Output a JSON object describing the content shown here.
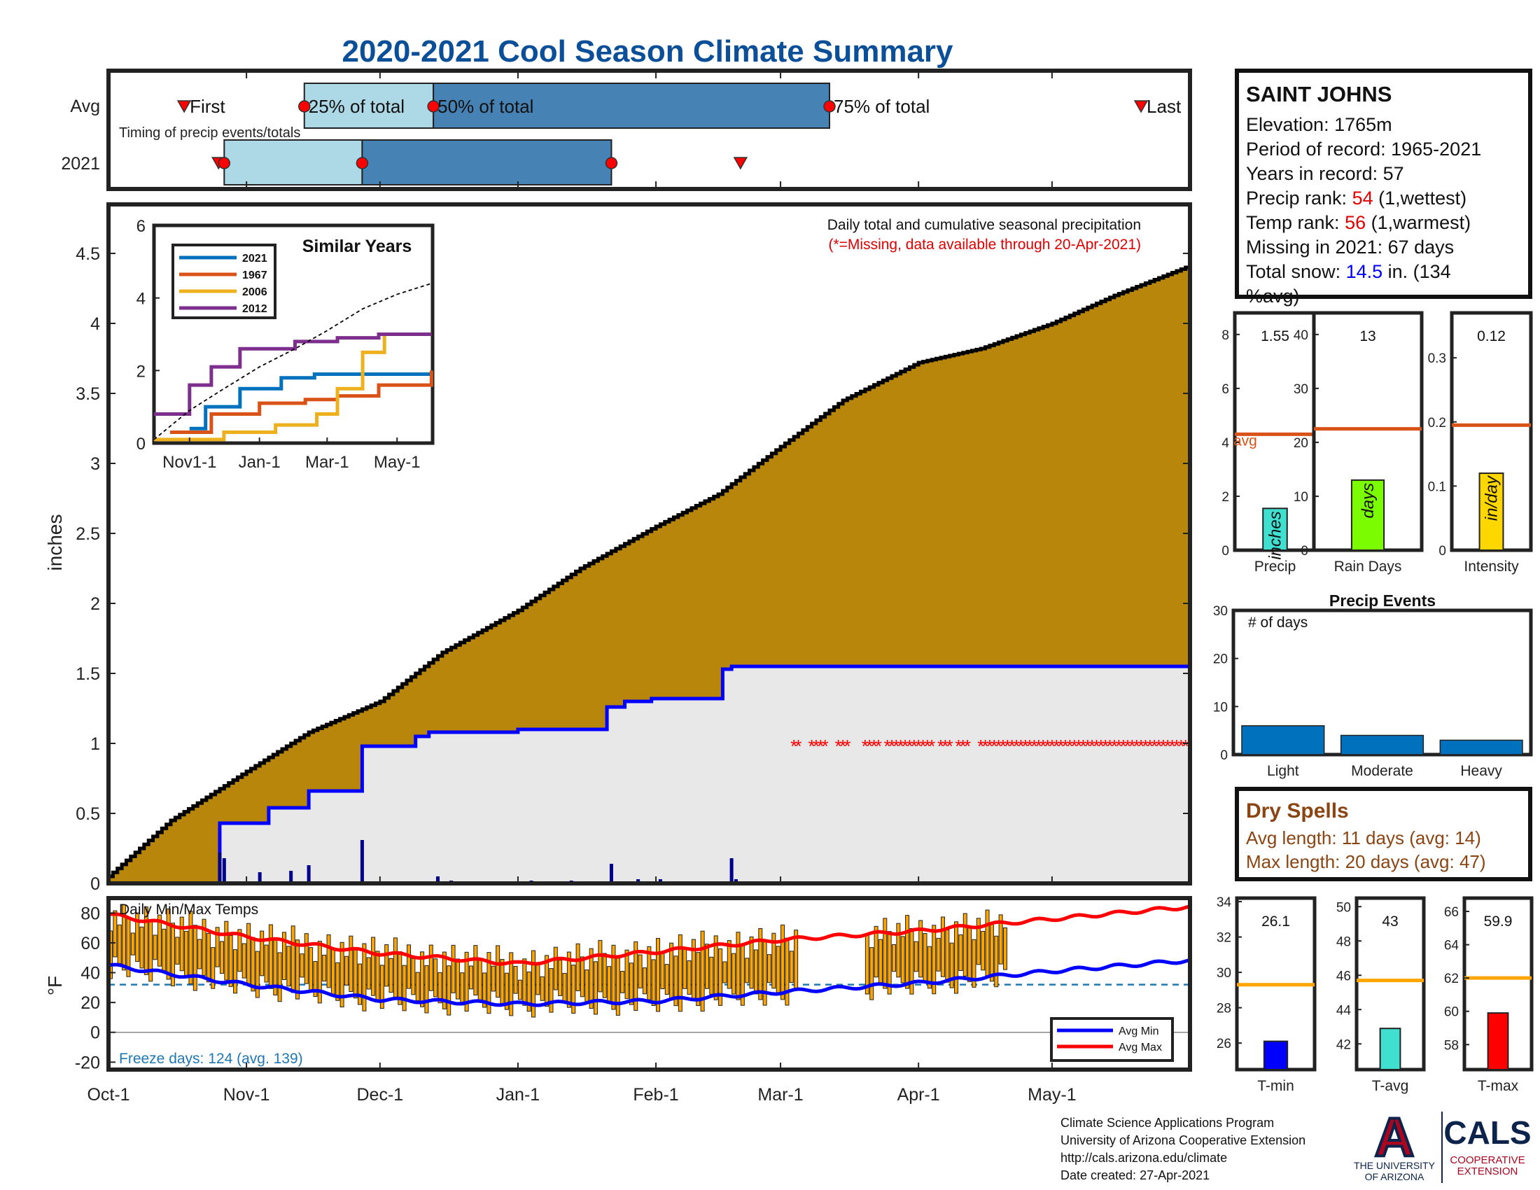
{
  "title": "2020-2021 Cool Season Climate Summary",
  "timing": {
    "row_labels": [
      "Avg",
      "2021"
    ],
    "caption": "Timing of precip events/totals",
    "avg_labels": [
      "First",
      "25% of total",
      "50% of total",
      "75% of total",
      "Last"
    ],
    "avg_markers": {
      "first": "Oct-18",
      "p25": "Nov-14",
      "p50": "Dec-13",
      "p75": "Mar-12",
      "last": "May-21"
    },
    "y2021_markers": {
      "first": "Oct-27",
      "p25": "Oct-27",
      "p50": "Nov-27",
      "p75": "Jan-22",
      "last": "Feb-20"
    },
    "colors": {
      "light": "#add8e6",
      "dark": "#4682b4",
      "marker": "#ff0000"
    }
  },
  "station": {
    "name": "SAINT JOHNS",
    "elevation": "Elevation: 1765m",
    "period": "Period of record: 1965-2021",
    "years": "Years in record: 57",
    "precip_rank_label": "Precip rank: ",
    "precip_rank_value": "54",
    "precip_rank_note": " (1,wettest)",
    "temp_rank_label": "Temp rank: ",
    "temp_rank_value": "56",
    "temp_rank_note": " (1,warmest)",
    "missing": "Missing in 2021: 67 days",
    "snow_label": "Total snow: ",
    "snow_value": "14.5",
    "snow_note_1": " in. (134",
    "snow_note_2": "%avg)"
  },
  "main_chart": {
    "note": "Daily total and cumulative seasonal precipitation",
    "missing_note": "(*=Missing, data available through 20-Apr-2021)",
    "ylabel": "inches",
    "x_ticks": [
      "Oct-1",
      "Nov-1",
      "Dec-1",
      "Jan-1",
      "Feb-1",
      "Mar-1",
      "Apr-1",
      "May-1"
    ],
    "colors": {
      "cumulative_avg_fill": "#b8860b",
      "current_fill": "#e8e8e8",
      "current_line": "#0000ff",
      "daily_bars": "#00008b",
      "missing": "#ff0000"
    }
  },
  "inset": {
    "title": "Similar Years",
    "x_ticks": [
      "Nov1-1",
      "Jan-1",
      "Mar-1",
      "May-1"
    ],
    "legend": [
      {
        "name": "2021",
        "color": "#0072bd"
      },
      {
        "name": "1967",
        "color": "#d95319"
      },
      {
        "name": "2006",
        "color": "#edb120"
      },
      {
        "name": "2012",
        "color": "#7e2f8e"
      }
    ]
  },
  "stat_panels": [
    {
      "value_label": "1.55",
      "value": 1.55,
      "avg": 4.3,
      "ylim": [
        0,
        8.8
      ],
      "ticks": [
        "0",
        "2",
        "4",
        "6",
        "8"
      ],
      "unit": "inches",
      "xlabel": "Precip",
      "color": "#40e0d0",
      "avg_label": "avg"
    },
    {
      "value_label": "13",
      "value": 13,
      "avg": 22.5,
      "ylim": [
        0,
        44
      ],
      "ticks": [
        "0",
        "10",
        "20",
        "30",
        "40"
      ],
      "unit": "days",
      "xlabel": "Rain Days",
      "color": "#7cfc00"
    },
    {
      "value_label": "0.12",
      "value": 0.12,
      "avg": 0.195,
      "ylim": [
        0,
        0.37
      ],
      "ticks": [
        "0",
        "0.1",
        "0.2",
        "0.3"
      ],
      "unit": "in/day",
      "xlabel": "Intensity",
      "color": "#ffd700"
    }
  ],
  "precip_events": {
    "title": "Precip Events",
    "ylabel": "# of days",
    "yticks": [
      "0",
      "10",
      "20",
      "30"
    ],
    "categories": [
      "Light",
      "Moderate",
      "Heavy"
    ],
    "values": [
      6,
      4,
      3
    ],
    "color": "#0072bd"
  },
  "dry_spells": {
    "title": "Dry Spells",
    "avg": "Avg length: 11 days (avg: 14)",
    "max": "Max length: 20 days (avg: 47)"
  },
  "temp_chart": {
    "title": "Daily Min/Max Temps",
    "ylabel": "°F",
    "yticks": [
      "80",
      "60",
      "40",
      "20",
      "0",
      "-20"
    ],
    "freeze": "Freeze days: 124 (avg. 139)",
    "legend": [
      {
        "name": "Avg Min",
        "color": "#0000ff"
      },
      {
        "name": "Avg Max",
        "color": "#ff0000"
      }
    ],
    "bar_color": "#ffa500"
  },
  "temp_panels": [
    {
      "value_label": "26.1",
      "value": 26.1,
      "avg": 29.3,
      "ylim": [
        24.5,
        34.2
      ],
      "ticks": [
        "26",
        "28",
        "30",
        "32",
        "34"
      ],
      "xlabel": "T-min",
      "color": "#0000ff"
    },
    {
      "value_label": "43",
      "value": 42.9,
      "avg": 45.7,
      "ylim": [
        40.5,
        50.5
      ],
      "ticks": [
        "42",
        "44",
        "46",
        "48",
        "50"
      ],
      "xlabel": "T-avg",
      "color": "#40e0d0"
    },
    {
      "value_label": "59.9",
      "value": 59.9,
      "avg": 62.0,
      "ylim": [
        56.5,
        66.8
      ],
      "ticks": [
        "58",
        "60",
        "62",
        "64",
        "66"
      ],
      "xlabel": "T-max",
      "color": "#ff0000"
    }
  ],
  "footer": {
    "line1": "Climate Science Applications Program",
    "line2": "University of Arizona Cooperative Extension",
    "line3": "http://cals.arizona.edu/climate",
    "line4": " Date created: 27-Apr-2021"
  },
  "logos": {
    "ua_letter": "A",
    "ua_line1": "THE UNIVERSITY",
    "ua_line2": "OF ARIZONA",
    "cals": "CALS",
    "cals_line1": "COOPERATIVE",
    "cals_line2": "EXTENSION"
  },
  "chart_data": [
    {
      "type": "area",
      "title": "Daily total and cumulative seasonal precipitation",
      "ylabel": "inches",
      "ylim": [
        0,
        4.85
      ],
      "x_range": [
        "Oct-1",
        "May-31"
      ],
      "avg_cumulative": {
        "x": [
          "Oct-1",
          "Oct-15",
          "Nov-1",
          "Nov-15",
          "Dec-1",
          "Dec-15",
          "Jan-1",
          "Jan-15",
          "Feb-1",
          "Feb-15",
          "Mar-1",
          "Mar-15",
          "Apr-1",
          "Apr-15",
          "May-1",
          "May-15",
          "May-31"
        ],
        "values": [
          0.05,
          0.45,
          0.8,
          1.08,
          1.3,
          1.65,
          1.95,
          2.25,
          2.55,
          2.78,
          3.12,
          3.45,
          3.72,
          3.82,
          4.0,
          4.2,
          4.4
        ]
      },
      "cumulative_2021": {
        "x": [
          "Oct-26",
          "Nov-1",
          "Nov-6",
          "Nov-15",
          "Nov-27",
          "Dec-9",
          "Dec-12",
          "Jan-1",
          "Jan-21",
          "Jan-25",
          "Jan-31",
          "Feb-16",
          "Feb-18",
          "Apr-20"
        ],
        "values": [
          0.43,
          0.43,
          0.54,
          0.66,
          0.98,
          1.05,
          1.08,
          1.1,
          1.26,
          1.3,
          1.32,
          1.53,
          1.55,
          1.55
        ]
      },
      "daily_2021": {
        "x": [
          "Oct-26",
          "Oct-27",
          "Nov-4",
          "Nov-11",
          "Nov-15",
          "Nov-27",
          "Dec-14",
          "Dec-17",
          "Jan-4",
          "Jan-13",
          "Jan-22",
          "Jan-28",
          "Feb-2",
          "Feb-18",
          "Feb-19"
        ],
        "values": [
          0.22,
          0.18,
          0.08,
          0.09,
          0.13,
          0.31,
          0.05,
          0.02,
          0.02,
          0.02,
          0.14,
          0.03,
          0.03,
          0.18,
          0.03
        ]
      },
      "missing_day_ranges": [
        [
          "Mar-4",
          "Mar-5"
        ],
        [
          "Mar-8",
          "Mar-11"
        ],
        [
          "Mar-14",
          "Mar-16"
        ],
        [
          "Mar-20",
          "Mar-23"
        ],
        [
          "Mar-25",
          "Apr-4"
        ],
        [
          "Apr-6",
          "Apr-8"
        ],
        [
          "Apr-10",
          "Apr-12"
        ],
        [
          "Apr-15",
          "May-31"
        ]
      ]
    },
    {
      "type": "line",
      "title": "Similar Years",
      "ylim": [
        0,
        6
      ],
      "series": [
        {
          "name": "2021",
          "x": [
            "Nov-1",
            "Nov-15",
            "Dec-15",
            "Jan-20",
            "Feb-18",
            "Jun-1"
          ],
          "values": [
            0.4,
            1.0,
            1.5,
            1.8,
            1.9,
            1.9
          ]
        },
        {
          "name": "1967",
          "x": [
            "Oct-15",
            "Nov-20",
            "Jan-1",
            "Feb-10",
            "Mar-10",
            "Apr-15",
            "May-31"
          ],
          "values": [
            0.3,
            0.8,
            1.1,
            1.2,
            1.3,
            1.6,
            2.0
          ]
        },
        {
          "name": "2006",
          "x": [
            "Oct-1",
            "Dec-1",
            "Jan-15",
            "Feb-20",
            "Mar-10",
            "Apr-1",
            "Apr-20",
            "May-31"
          ],
          "values": [
            0.1,
            0.3,
            0.5,
            0.8,
            1.5,
            2.5,
            3.0,
            3.0
          ]
        },
        {
          "name": "2012",
          "x": [
            "Oct-1",
            "Nov-1",
            "Nov-20",
            "Dec-15",
            "Feb-1",
            "Mar-10",
            "Apr-15",
            "May-31"
          ],
          "values": [
            0.8,
            1.6,
            2.1,
            2.6,
            2.8,
            2.9,
            3.0,
            3.0
          ]
        },
        {
          "name": "avg",
          "x": [
            "Oct-1",
            "Nov-1",
            "Dec-1",
            "Jan-1",
            "Feb-1",
            "Mar-1",
            "Apr-1",
            "May-1",
            "May-31"
          ],
          "values": [
            0.1,
            0.9,
            1.5,
            2.1,
            2.6,
            3.1,
            3.7,
            4.1,
            4.4
          ]
        }
      ]
    },
    {
      "type": "bar",
      "title": "Precip Events",
      "categories": [
        "Light",
        "Moderate",
        "Heavy"
      ],
      "values": [
        6,
        4,
        3
      ],
      "ylim": [
        0,
        30
      ]
    },
    {
      "type": "line",
      "title": "Daily Min/Max Temps",
      "ylabel": "°F",
      "ylim": [
        -25,
        90
      ],
      "freeze_line": 32,
      "series": [
        {
          "name": "Avg Max",
          "x": [
            "Oct-1",
            "Nov-1",
            "Dec-1",
            "Jan-1",
            "Feb-1",
            "Mar-1",
            "Apr-1",
            "May-1",
            "May-31"
          ],
          "values": [
            79,
            64,
            53,
            46,
            54,
            62,
            68,
            76,
            84
          ]
        },
        {
          "name": "Avg Min",
          "x": [
            "Oct-1",
            "Nov-1",
            "Dec-1",
            "Jan-1",
            "Feb-1",
            "Mar-1",
            "Apr-1",
            "May-1",
            "May-31"
          ],
          "values": [
            45,
            32,
            22,
            19,
            21,
            27,
            33,
            41,
            48
          ]
        }
      ],
      "daily_2021_note": "daily min–max range bars through Apr-20"
    },
    {
      "type": "bar",
      "categories": [
        "Precip",
        "Rain Days",
        "Intensity"
      ],
      "values": [
        1.55,
        13,
        0.12
      ],
      "avg": [
        4.3,
        22.5,
        0.195
      ]
    },
    {
      "type": "bar",
      "categories": [
        "T-min",
        "T-avg",
        "T-max"
      ],
      "values": [
        26.1,
        42.9,
        59.9
      ],
      "avg": [
        29.3,
        45.7,
        62.0
      ]
    }
  ]
}
